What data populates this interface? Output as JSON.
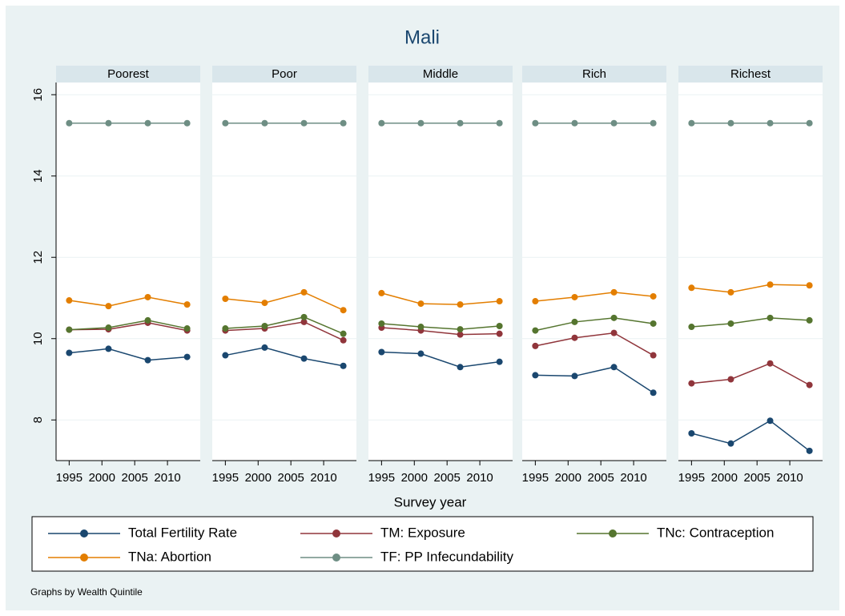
{
  "chart_data": {
    "type": "line",
    "title": "Mali",
    "x_label": "Survey year",
    "note": "Graphs by Wealth Quintile",
    "facets": [
      "Poorest",
      "Poor",
      "Middle",
      "Rich",
      "Richest"
    ],
    "x": [
      1995,
      2001,
      2007,
      2013
    ],
    "xlim": [
      1993,
      2015
    ],
    "xticks": [
      1995,
      2000,
      2005,
      2010
    ],
    "ylim": [
      7,
      16.3
    ],
    "yticks": [
      8,
      10,
      12,
      14,
      16
    ],
    "grid": true,
    "series": [
      {
        "name": "Total Fertility Rate",
        "color": "#1a476f",
        "values": [
          [
            9.65,
            9.75,
            9.47,
            9.55
          ],
          [
            9.59,
            9.78,
            9.51,
            9.33
          ],
          [
            9.67,
            9.63,
            9.3,
            9.43
          ],
          [
            9.1,
            9.08,
            9.3,
            8.67
          ],
          [
            7.67,
            7.42,
            7.98,
            7.24
          ]
        ]
      },
      {
        "name": "TM: Exposure",
        "color": "#90353b",
        "values": [
          [
            10.22,
            10.23,
            10.39,
            10.2
          ],
          [
            10.2,
            10.25,
            10.41,
            9.96
          ],
          [
            10.27,
            10.2,
            10.1,
            10.12
          ],
          [
            9.82,
            10.02,
            10.14,
            9.59
          ],
          [
            8.9,
            9.0,
            9.39,
            8.86
          ]
        ]
      },
      {
        "name": "TNc: Contraception",
        "color": "#55752f",
        "values": [
          [
            10.22,
            10.27,
            10.45,
            10.25
          ],
          [
            10.25,
            10.31,
            10.53,
            10.12
          ],
          [
            10.37,
            10.29,
            10.23,
            10.31
          ],
          [
            10.2,
            10.41,
            10.51,
            10.37
          ],
          [
            10.29,
            10.37,
            10.51,
            10.45
          ]
        ]
      },
      {
        "name": "TNa: Abortion",
        "color": "#e37e00",
        "values": [
          [
            10.94,
            10.8,
            11.02,
            10.84
          ],
          [
            10.98,
            10.88,
            11.14,
            10.7
          ],
          [
            11.12,
            10.86,
            10.84,
            10.92
          ],
          [
            10.92,
            11.02,
            11.14,
            11.04
          ],
          [
            11.25,
            11.14,
            11.33,
            11.31
          ]
        ]
      },
      {
        "name": "TF: PP Infecundability",
        "color": "#6e8e84",
        "values": [
          [
            15.3,
            15.3,
            15.3,
            15.3
          ],
          [
            15.3,
            15.3,
            15.3,
            15.3
          ],
          [
            15.3,
            15.3,
            15.3,
            15.3
          ],
          [
            15.3,
            15.3,
            15.3,
            15.3
          ],
          [
            15.3,
            15.3,
            15.3,
            15.3
          ]
        ]
      }
    ]
  }
}
